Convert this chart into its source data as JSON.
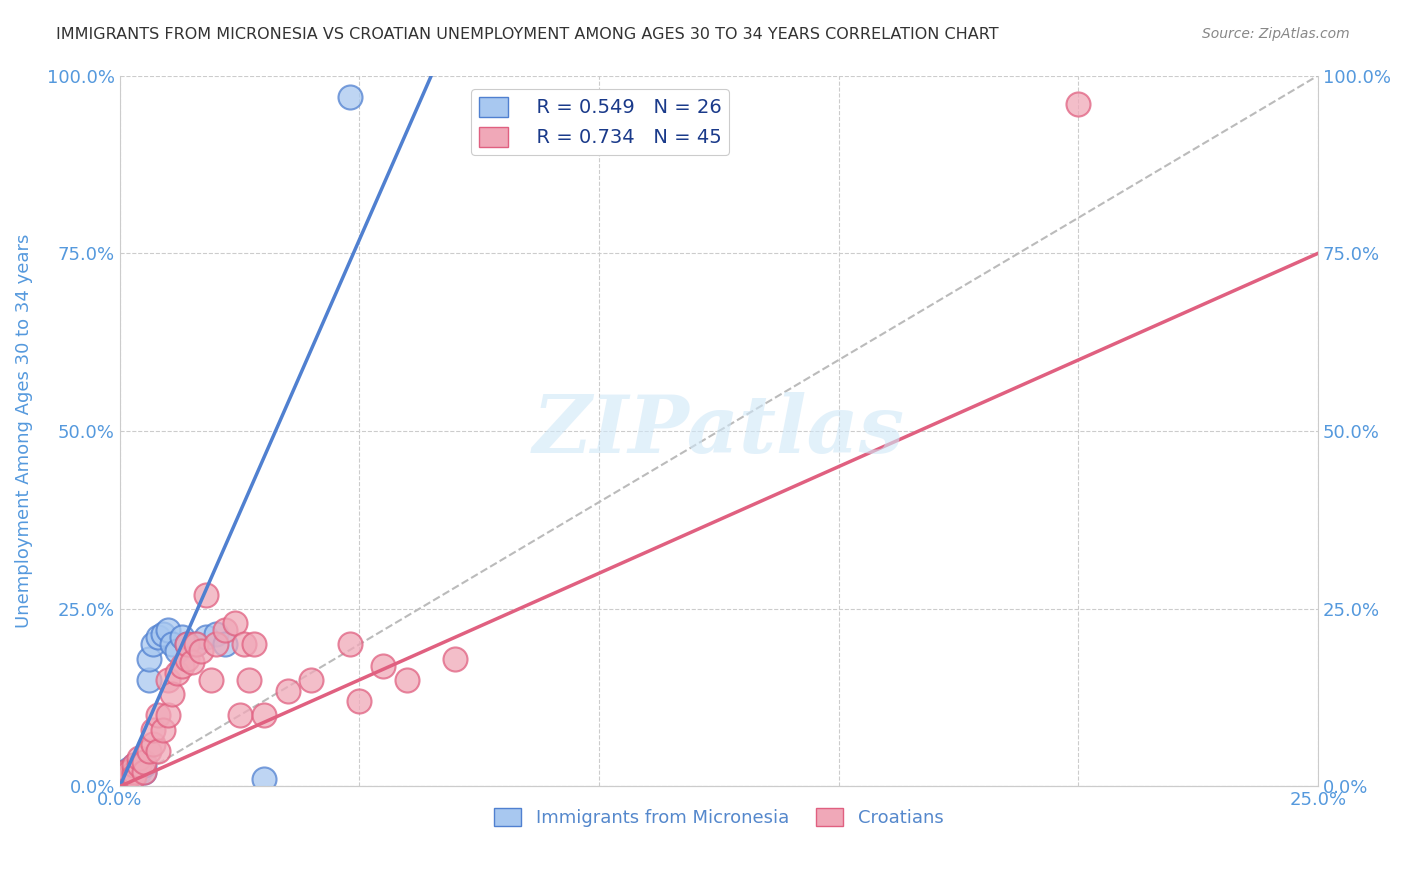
{
  "title": "IMMIGRANTS FROM MICRONESIA VS CROATIAN UNEMPLOYMENT AMONG AGES 30 TO 34 YEARS CORRELATION CHART",
  "source": "Source: ZipAtlas.com",
  "ylabel": "Unemployment Among Ages 30 to 34 years",
  "xlim": [
    0.0,
    0.25
  ],
  "ylim": [
    0.0,
    1.0
  ],
  "x_ticks": [
    0.0,
    0.05,
    0.1,
    0.15,
    0.2,
    0.25
  ],
  "x_tick_labels_show": [
    "0.0%",
    "",
    "",
    "",
    "",
    "25.0%"
  ],
  "y_ticks": [
    0.0,
    0.25,
    0.5,
    0.75,
    1.0
  ],
  "y_tick_labels": [
    "0.0%",
    "25.0%",
    "50.0%",
    "75.0%",
    "100.0%"
  ],
  "blue_color": "#a8c8f0",
  "pink_color": "#f0a8b8",
  "blue_line_color": "#5080d0",
  "pink_line_color": "#e06080",
  "grid_color": "#cccccc",
  "grid_style": "--",
  "background_color": "#ffffff",
  "title_color": "#333333",
  "tick_color": "#5599dd",
  "ylabel_color": "#5599dd",
  "source_color": "#888888",
  "watermark_color": "#d0e8f8",
  "watermark_alpha": 0.6,
  "legend_R1": "R = 0.549",
  "legend_N1": "N = 26",
  "legend_R2": "R = 0.734",
  "legend_N2": "N = 45",
  "legend_label1": "Immigrants from Micronesia",
  "legend_label2": "Croatians",
  "watermark": "ZIPatlas",
  "blue_scatter_x": [
    0.001,
    0.001,
    0.002,
    0.002,
    0.003,
    0.003,
    0.004,
    0.004,
    0.005,
    0.005,
    0.006,
    0.006,
    0.007,
    0.008,
    0.009,
    0.01,
    0.011,
    0.012,
    0.013,
    0.014,
    0.016,
    0.018,
    0.02,
    0.022,
    0.03,
    0.048
  ],
  "blue_scatter_y": [
    0.01,
    0.02,
    0.015,
    0.025,
    0.02,
    0.03,
    0.02,
    0.03,
    0.02,
    0.03,
    0.15,
    0.18,
    0.2,
    0.21,
    0.215,
    0.22,
    0.2,
    0.19,
    0.21,
    0.2,
    0.2,
    0.21,
    0.215,
    0.2,
    0.01,
    0.97
  ],
  "pink_scatter_x": [
    0.001,
    0.001,
    0.002,
    0.002,
    0.003,
    0.003,
    0.003,
    0.004,
    0.004,
    0.005,
    0.005,
    0.006,
    0.007,
    0.007,
    0.008,
    0.008,
    0.009,
    0.01,
    0.01,
    0.011,
    0.012,
    0.013,
    0.014,
    0.014,
    0.015,
    0.016,
    0.017,
    0.018,
    0.019,
    0.02,
    0.022,
    0.024,
    0.025,
    0.026,
    0.027,
    0.028,
    0.03,
    0.035,
    0.04,
    0.048,
    0.05,
    0.055,
    0.06,
    0.07,
    0.2
  ],
  "pink_scatter_y": [
    0.01,
    0.02,
    0.015,
    0.02,
    0.02,
    0.03,
    0.015,
    0.03,
    0.04,
    0.02,
    0.035,
    0.05,
    0.06,
    0.08,
    0.05,
    0.1,
    0.08,
    0.1,
    0.15,
    0.13,
    0.16,
    0.17,
    0.18,
    0.2,
    0.175,
    0.2,
    0.19,
    0.27,
    0.15,
    0.2,
    0.22,
    0.23,
    0.1,
    0.2,
    0.15,
    0.2,
    0.1,
    0.135,
    0.15,
    0.2,
    0.12,
    0.17,
    0.15,
    0.18,
    0.96
  ],
  "blue_line_x": [
    0.0,
    0.065
  ],
  "blue_line_y": [
    0.0,
    1.0
  ],
  "pink_line_x": [
    0.0,
    0.25
  ],
  "pink_line_y": [
    0.0,
    0.75
  ],
  "diag_line_x": [
    0.0,
    0.25
  ],
  "diag_line_y": [
    0.0,
    1.0
  ]
}
